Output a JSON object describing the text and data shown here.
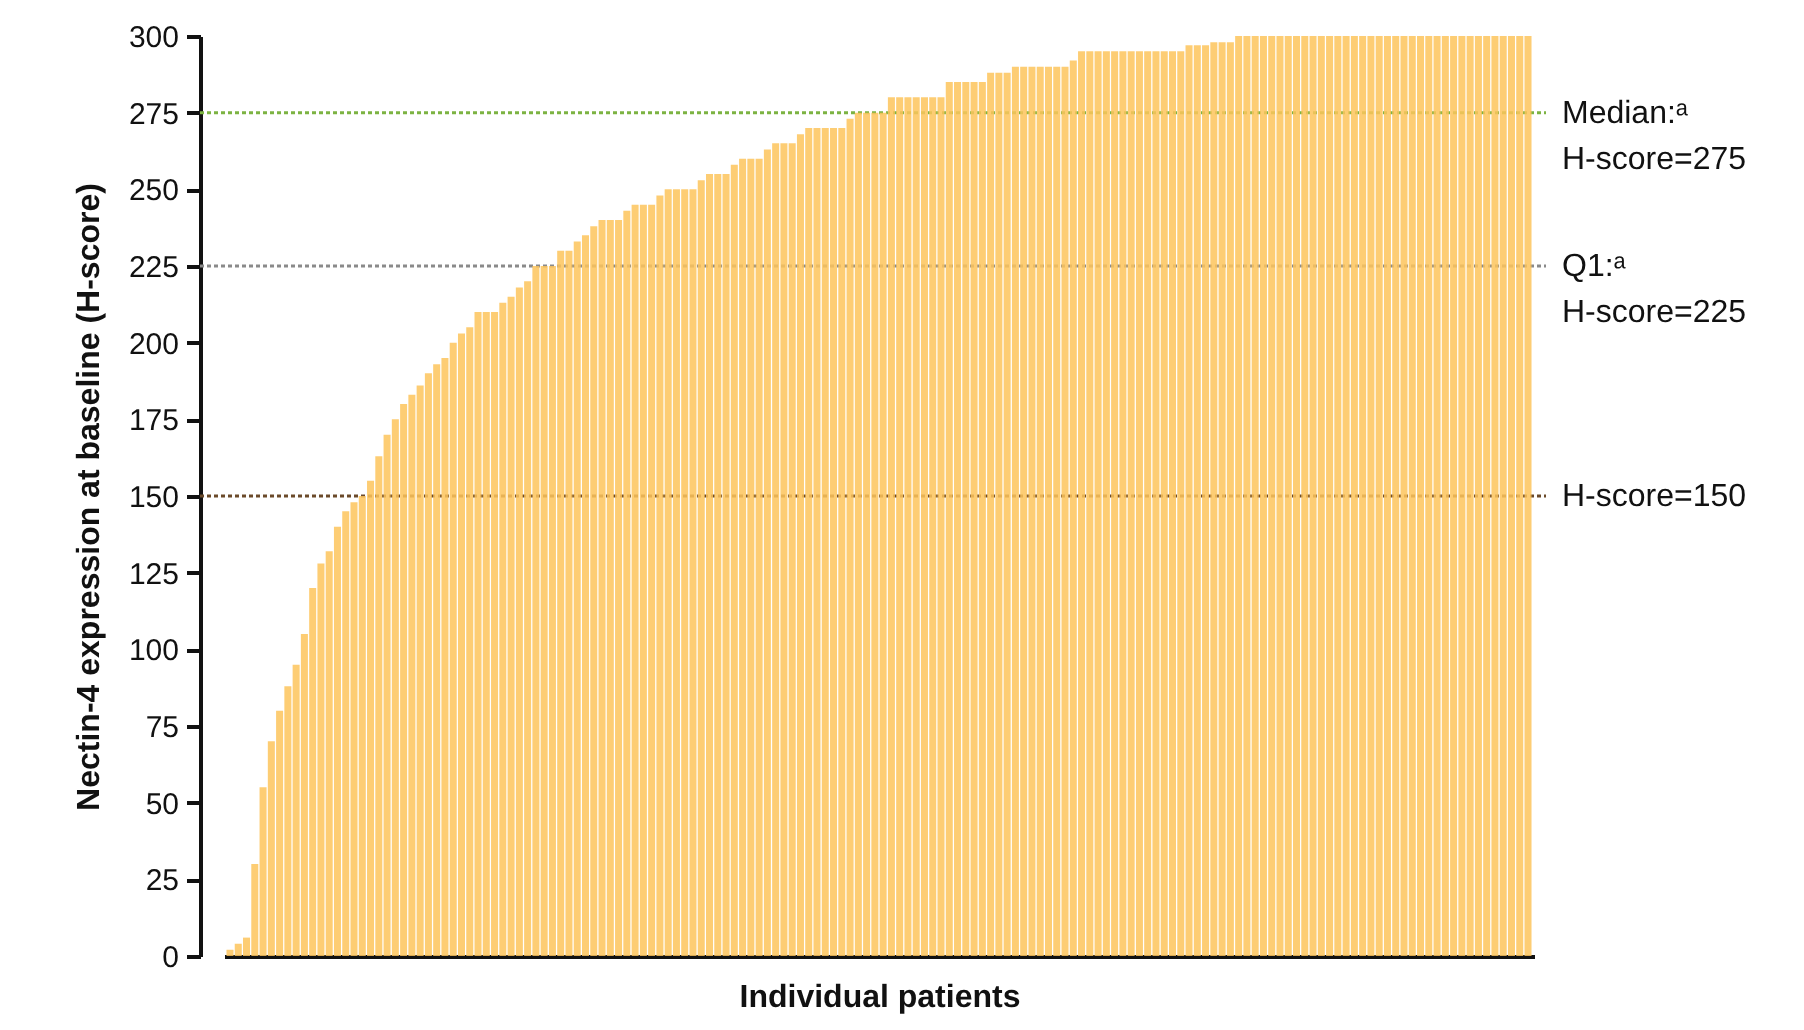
{
  "chart_data": {
    "type": "bar",
    "xlabel": "Individual patients",
    "ylabel": "Nectin-4 expression at baseline (H-score)",
    "categories": [
      null,
      null,
      null,
      null,
      null,
      null,
      null,
      null,
      null,
      null,
      null,
      null,
      null,
      null,
      null,
      null,
      null,
      null,
      null,
      null,
      null,
      null,
      null,
      null,
      null,
      null,
      null,
      null,
      null,
      null,
      null,
      null,
      null,
      null,
      null,
      null,
      null,
      null,
      null,
      null,
      null,
      null,
      null,
      null,
      null,
      null,
      null,
      null,
      null,
      null,
      null,
      null,
      null,
      null,
      null,
      null,
      null,
      null,
      null,
      null,
      null,
      null,
      null,
      null,
      null,
      null,
      null,
      null,
      null,
      null,
      null,
      null,
      null,
      null,
      null,
      null,
      null,
      null,
      null,
      null,
      null,
      null,
      null,
      null,
      null,
      null,
      null,
      null,
      null,
      null,
      null,
      null,
      null,
      null,
      null,
      null,
      null,
      null,
      null,
      null,
      null,
      null,
      null,
      null,
      null,
      null,
      null,
      null,
      null,
      null,
      null,
      null,
      null,
      null,
      null,
      null,
      null,
      null,
      null,
      null,
      null,
      null,
      null,
      null,
      null,
      null,
      null,
      null,
      null,
      null,
      null,
      null,
      null,
      null,
      null,
      null,
      null,
      null,
      null,
      null,
      null,
      null,
      null,
      null,
      null,
      null,
      null,
      null,
      null,
      null,
      null,
      null,
      null,
      null,
      null,
      null,
      null,
      null
    ],
    "values": [
      2,
      4,
      6,
      30,
      55,
      70,
      80,
      88,
      95,
      105,
      120,
      128,
      132,
      140,
      145,
      148,
      150,
      155,
      163,
      170,
      175,
      180,
      183,
      186,
      190,
      193,
      195,
      200,
      203,
      205,
      210,
      210,
      210,
      213,
      215,
      218,
      220,
      225,
      225,
      225,
      230,
      230,
      233,
      235,
      238,
      240,
      240,
      240,
      243,
      245,
      245,
      245,
      248,
      250,
      250,
      250,
      250,
      253,
      255,
      255,
      255,
      258,
      260,
      260,
      260,
      263,
      265,
      265,
      265,
      268,
      270,
      270,
      270,
      270,
      270,
      273,
      275,
      275,
      275,
      275,
      280,
      280,
      280,
      280,
      280,
      280,
      280,
      285,
      285,
      285,
      285,
      285,
      288,
      288,
      288,
      290,
      290,
      290,
      290,
      290,
      290,
      290,
      292,
      295,
      295,
      295,
      295,
      295,
      295,
      295,
      295,
      295,
      295,
      295,
      295,
      295,
      297,
      297,
      297,
      298,
      298,
      298,
      300,
      300,
      300,
      300,
      300,
      300,
      300,
      300,
      300,
      300,
      300,
      300,
      300,
      300,
      300,
      300,
      300,
      300,
      300,
      300,
      300,
      300,
      300,
      300,
      300,
      300,
      300,
      300,
      300,
      300,
      300,
      300,
      300,
      300,
      300,
      300
    ],
    "color": "#fdc45c",
    "ylim": [
      0,
      300
    ],
    "yticks": [
      0,
      25,
      50,
      75,
      100,
      125,
      150,
      175,
      200,
      225,
      250,
      275,
      300
    ],
    "ref_lines": [
      {
        "axis": "y",
        "value": 275,
        "label": "Median:ᵃ\nH-score=275",
        "color": "#7cb342",
        "line_style": "dotted"
      },
      {
        "axis": "y",
        "value": 225,
        "label": "Q1:ᵃ\nH-score=225",
        "color": "#8a8a8a",
        "line_style": "dotted"
      },
      {
        "axis": "y",
        "value": 150,
        "label": "H-score=150",
        "color": "#6b4a2a",
        "line_style": "dotted"
      }
    ]
  }
}
